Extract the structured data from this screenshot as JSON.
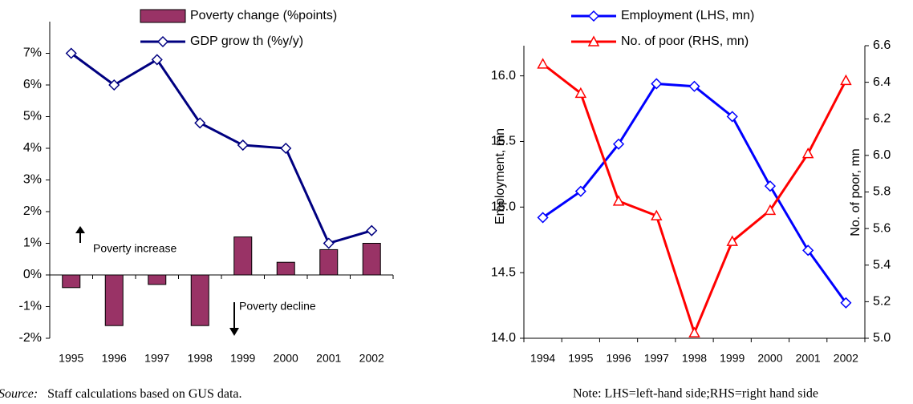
{
  "chart_data": [
    {
      "type": "bar",
      "categories": [
        "1995",
        "1996",
        "1997",
        "1998",
        "1999",
        "2000",
        "2001",
        "2002"
      ],
      "series": [
        {
          "name": "Poverty change (%points)",
          "type": "bar",
          "color": "#993366",
          "values": [
            -0.4,
            -1.6,
            -0.3,
            -1.6,
            1.2,
            0.4,
            0.8,
            1.0
          ]
        },
        {
          "name": "GDP grow th (%y/y)",
          "type": "line",
          "marker": "diamond",
          "color": "#000080",
          "values": [
            7.0,
            6.0,
            6.8,
            4.8,
            4.1,
            4.0,
            1.0,
            1.4
          ]
        }
      ],
      "ylim": [
        -2,
        8
      ],
      "yticks": [
        {
          "value": -2,
          "label": "-2%"
        },
        {
          "value": -1,
          "label": "-1%"
        },
        {
          "value": 0,
          "label": "0%"
        },
        {
          "value": 1,
          "label": "1%"
        },
        {
          "value": 2,
          "label": "2%"
        },
        {
          "value": 3,
          "label": "3%"
        },
        {
          "value": 4,
          "label": "4%"
        },
        {
          "value": 5,
          "label": "5%"
        },
        {
          "value": 6,
          "label": "6%"
        },
        {
          "value": 7,
          "label": "7%"
        }
      ],
      "annotations": [
        "Poverty increase",
        "Poverty decline"
      ],
      "source_label": "Source:",
      "source_text": "Staff calculations based on GUS data."
    },
    {
      "type": "line",
      "categories": [
        "1994",
        "1995",
        "1996",
        "1997",
        "1998",
        "1999",
        "2000",
        "2001",
        "2002"
      ],
      "series": [
        {
          "name": "Employment (LHS, mn)",
          "marker": "diamond",
          "color": "#0000ff",
          "values": [
            14.92,
            15.12,
            15.48,
            15.94,
            15.92,
            15.69,
            15.16,
            14.67,
            14.27
          ]
        },
        {
          "name": "No. of poor (RHS, mn)",
          "marker": "triangle",
          "color": "#ff0000",
          "axis": "y2",
          "values": [
            6.5,
            6.34,
            5.75,
            5.67,
            5.03,
            5.53,
            5.7,
            6.01,
            6.41
          ]
        }
      ],
      "ylabel": "Employment, mn",
      "y2label": "No. of poor, mn",
      "ylim": [
        14.0,
        16.23
      ],
      "yticks": [
        {
          "value": 14,
          "label": "14.0"
        },
        14.5,
        {
          "value": 15,
          "label": "15.0"
        },
        15.5,
        {
          "value": 16,
          "label": "16.0"
        }
      ],
      "y2lim": [
        5.0,
        6.6
      ],
      "y2ticks": [
        {
          "value": 5,
          "label": "5.0"
        },
        5.2,
        5.4,
        5.6,
        5.8,
        {
          "value": 6,
          "label": "6.0"
        },
        6.2,
        6.4,
        6.6
      ],
      "note": "Note: LHS=left-hand side;RHS=right hand side"
    }
  ]
}
